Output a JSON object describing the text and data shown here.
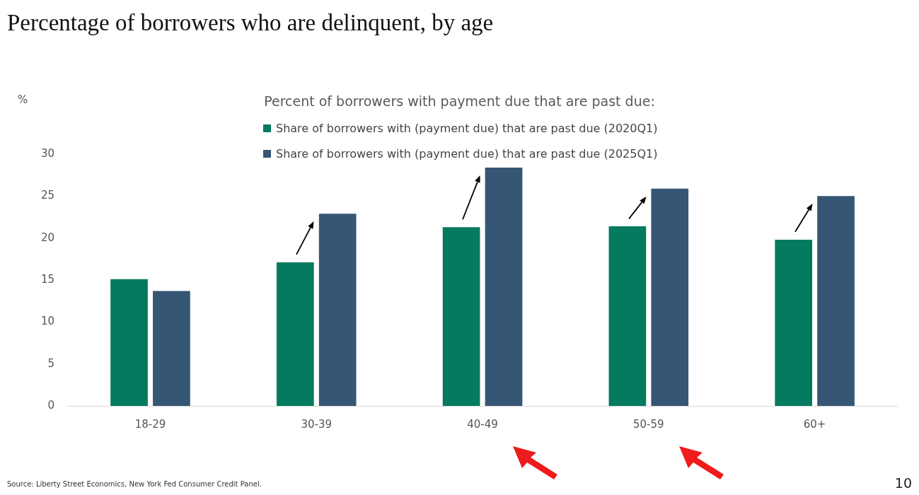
{
  "chart_data": {
    "type": "bar",
    "title": "Percentage of borrowers who are delinquent, by age",
    "ylabel": "%",
    "legend_title": "Percent of borrowers with payment due that are past due:",
    "categories": [
      "18-29",
      "30-39",
      "40-49",
      "50-59",
      "60+"
    ],
    "series": [
      {
        "name": "Share of borrowers with (payment due) that are past due (2020Q1)",
        "color": "#047a5f",
        "values": [
          15.1,
          17.1,
          21.3,
          21.4,
          19.8
        ]
      },
      {
        "name": "Share of borrowers with (payment due) that are past due (2025Q1)",
        "color": "#365675",
        "values": [
          13.7,
          22.9,
          28.4,
          25.9,
          25.0
        ]
      }
    ],
    "ylim": [
      0,
      30
    ],
    "yticks": [
      0,
      5,
      10,
      15,
      20,
      25,
      30
    ],
    "grid": false,
    "legend": "top",
    "annotations": [
      "Source: Liberty Street Economics, New York Fed Consumer Credit Panel.",
      "10"
    ]
  }
}
